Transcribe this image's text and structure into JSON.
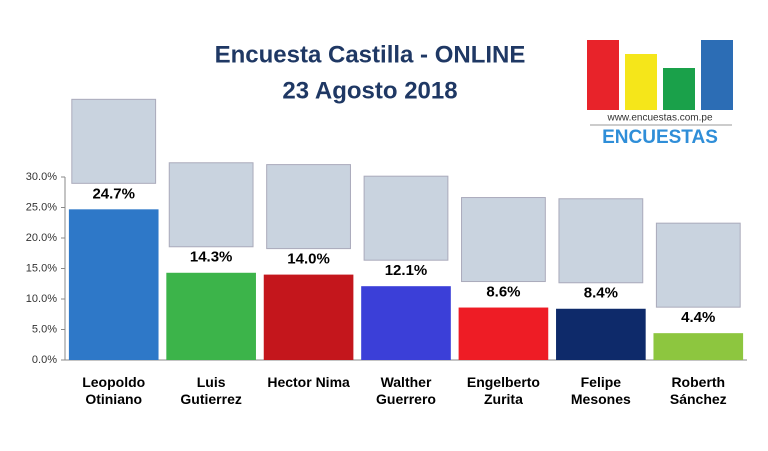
{
  "chart_data": {
    "type": "bar",
    "title": "Encuesta Castilla - ONLINE",
    "subtitle": "23 Agosto 2018",
    "logo": {
      "url": "www.encuestas.com.pe",
      "name": "ENCUESTAS"
    },
    "categories": [
      "Leopoldo Otiniano",
      "Luis Gutierrez",
      "Hector Nima",
      "Walther Guerrero",
      "Engelberto Zurita",
      "Felipe Mesones",
      "Roberth Sánchez"
    ],
    "values": [
      24.7,
      14.3,
      14.0,
      12.1,
      8.6,
      8.4,
      4.4
    ],
    "value_labels": [
      "24.7%",
      "14.3%",
      "14.0%",
      "12.1%",
      "8.6%",
      "8.4%",
      "4.4%"
    ],
    "colors": [
      "#2e78c8",
      "#3cb44a",
      "#c4161c",
      "#3b3fd8",
      "#ee1c25",
      "#0e2a6a",
      "#8dc63f"
    ],
    "ylim": [
      0,
      30
    ],
    "yticks": [
      {
        "value": 0,
        "label": "0.0%"
      },
      {
        "value": 5,
        "label": "5.0%"
      },
      {
        "value": 10,
        "label": "10.0%"
      },
      {
        "value": 15,
        "label": "15.0%"
      },
      {
        "value": 20,
        "label": "20.0%"
      },
      {
        "value": 25,
        "label": "25.0%"
      },
      {
        "value": 30,
        "label": "30.0%"
      }
    ],
    "grid": false
  }
}
